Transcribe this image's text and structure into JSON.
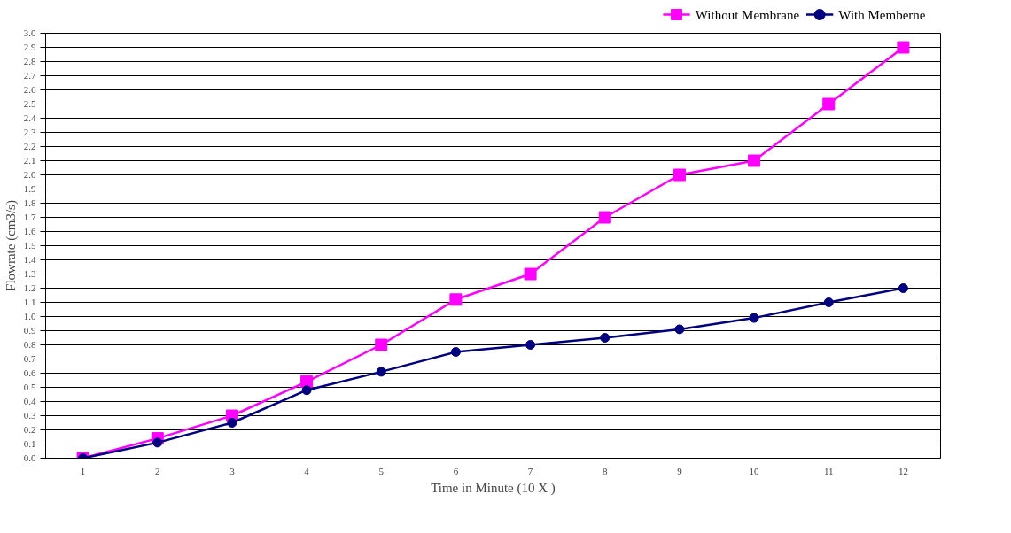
{
  "chart_data": {
    "type": "line",
    "xlabel": "Time in Minute (10 X )",
    "ylabel": "Flowrate (cm3/s)",
    "categories": [
      "1",
      "2",
      "3",
      "4",
      "5",
      "6",
      "7",
      "8",
      "9",
      "10",
      "11",
      "12"
    ],
    "series": [
      {
        "name": "Without Membrane",
        "color": "#ff00ff",
        "marker": "square",
        "values": [
          0.0,
          0.14,
          0.3,
          0.54,
          0.8,
          1.12,
          1.3,
          1.7,
          2.0,
          2.1,
          2.5,
          2.9
        ]
      },
      {
        "name": "With Memberne",
        "color": "#000080",
        "marker": "circle",
        "values": [
          0.0,
          0.11,
          0.25,
          0.48,
          0.61,
          0.75,
          0.8,
          0.85,
          0.91,
          0.99,
          1.1,
          1.2
        ]
      }
    ],
    "ylim": [
      0,
      3
    ],
    "yticks": [
      {
        "value": 0,
        "label": "0.0"
      },
      {
        "value": 0.1,
        "label": "0.1"
      },
      {
        "value": 0.2,
        "label": "0.2"
      },
      {
        "value": 0.3,
        "label": "0.3"
      },
      {
        "value": 0.4,
        "label": "0.4"
      },
      {
        "value": 0.5,
        "label": "0.5"
      },
      {
        "value": 0.6,
        "label": "0.6"
      },
      {
        "value": 0.7,
        "label": "0.7"
      },
      {
        "value": 0.8,
        "label": "0.8"
      },
      {
        "value": 0.9,
        "label": "0.9"
      },
      {
        "value": 1,
        "label": "1.0"
      },
      {
        "value": 1.1,
        "label": "1.1"
      },
      {
        "value": 1.2,
        "label": "1.2"
      },
      {
        "value": 1.3,
        "label": "1.3"
      },
      {
        "value": 1.4,
        "label": "1.4"
      },
      {
        "value": 1.5,
        "label": "1.5"
      },
      {
        "value": 1.6,
        "label": "1.6"
      },
      {
        "value": 1.7,
        "label": "1.7"
      },
      {
        "value": 1.8,
        "label": "1.8"
      },
      {
        "value": 1.9,
        "label": "1.9"
      },
      {
        "value": 2,
        "label": "2.0"
      },
      {
        "value": 2.1,
        "label": "2.1"
      },
      {
        "value": 2.2,
        "label": "2.2"
      },
      {
        "value": 2.3,
        "label": "2.3"
      },
      {
        "value": 2.4,
        "label": "2.4"
      },
      {
        "value": 2.5,
        "label": "2.5"
      },
      {
        "value": 2.6,
        "label": "2.6"
      },
      {
        "value": 2.7,
        "label": "2.7"
      },
      {
        "value": 2.8,
        "label": "2.8"
      },
      {
        "value": 2.9,
        "label": "2.9"
      },
      {
        "value": 3,
        "label": "3.0"
      }
    ],
    "grid": "y",
    "legend": "top right",
    "line_style": "solid"
  }
}
